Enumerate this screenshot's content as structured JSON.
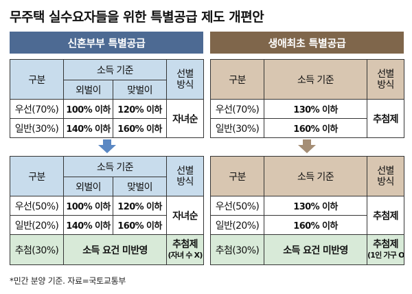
{
  "title": "무주택 실수요자들을 위한 특별공급 제도 개편안",
  "left_header": "신혼부부 특별공급",
  "right_header": "생애최초 특별공급",
  "labels": {
    "category": "구분",
    "income_criteria": "소득 기준",
    "single_income": "외벌이",
    "dual_income": "맞벌이",
    "selection_method_line1": "선별",
    "selection_method_line2": "방식",
    "lottery": "추첨제"
  },
  "left_before": {
    "rows": [
      {
        "label": "우선(70%)",
        "single": "100% 이하",
        "dual": "120% 이하"
      },
      {
        "label": "일반(30%)",
        "single": "140% 이하",
        "dual": "160% 이하"
      }
    ],
    "method": "자녀순"
  },
  "left_after": {
    "rows": [
      {
        "label": "우선(50%)",
        "single": "100% 이하",
        "dual": "120% 이하"
      },
      {
        "label": "일반(20%)",
        "single": "140% 이하",
        "dual": "160% 이하"
      }
    ],
    "method": "자녀순",
    "lottery_row": {
      "label": "추첨(30%)",
      "income": "소득 요건 미반영",
      "method_line1": "추첨제",
      "method_line2": "(자녀 수 X)"
    }
  },
  "right_before": {
    "rows": [
      {
        "label": "우선(70%)",
        "income": "130% 이하"
      },
      {
        "label": "일반(30%)",
        "income": "160% 이하"
      }
    ],
    "method": "추첨제"
  },
  "right_after": {
    "rows": [
      {
        "label": "우선(50%)",
        "income": "130% 이하"
      },
      {
        "label": "일반(20%)",
        "income": "160% 이하"
      }
    ],
    "method": "추첨제",
    "lottery_row": {
      "label": "추첨(30%)",
      "income": "소득 요건 미반영",
      "method_line1": "추첨제",
      "method_line2": "(1인 가구 O)"
    }
  },
  "colors": {
    "left_header_bg": "#4d6a93",
    "right_header_bg": "#7f664b",
    "left_cell_bg": "#c8dcec",
    "right_cell_bg": "#d8c6b1",
    "lottery_row_bg": "#d8ead8",
    "left_arrow": "#5b88c3",
    "right_arrow": "#a58e75"
  },
  "footnote": "*민간 분양 기준. 자료=국토교통부"
}
